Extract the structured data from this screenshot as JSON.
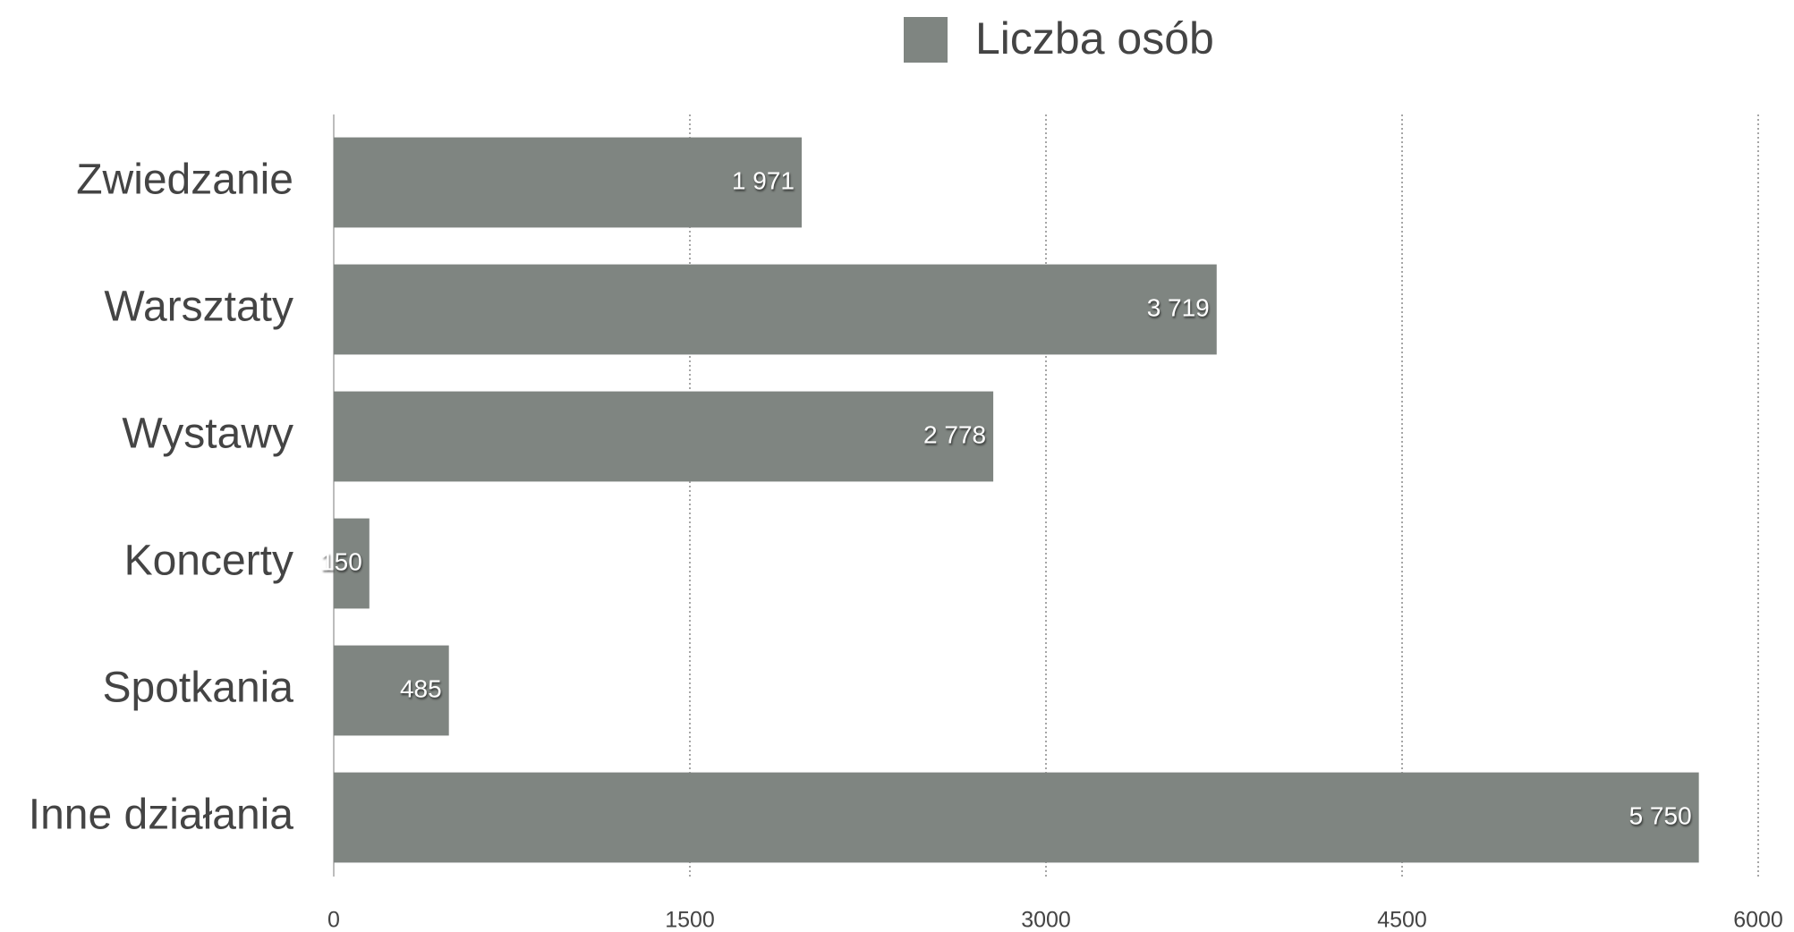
{
  "chart_data": {
    "type": "bar",
    "orientation": "horizontal",
    "legend": "top",
    "series": [
      {
        "name": "Liczba osób",
        "color": "#7f8581",
        "values": [
          1971,
          3719,
          2778,
          150,
          485,
          5750
        ],
        "value_labels": [
          "1 971",
          "3 719",
          "2 778",
          "150",
          "485",
          "5 750"
        ]
      }
    ],
    "categories": [
      "Zwiedzanie",
      "Warsztaty",
      "Wystawy",
      "Koncerty",
      "Spotkania",
      "Inne działania"
    ],
    "xlim": [
      0,
      6000
    ],
    "xticks": [
      0,
      1500,
      3000,
      4500,
      6000
    ],
    "grid": true
  }
}
